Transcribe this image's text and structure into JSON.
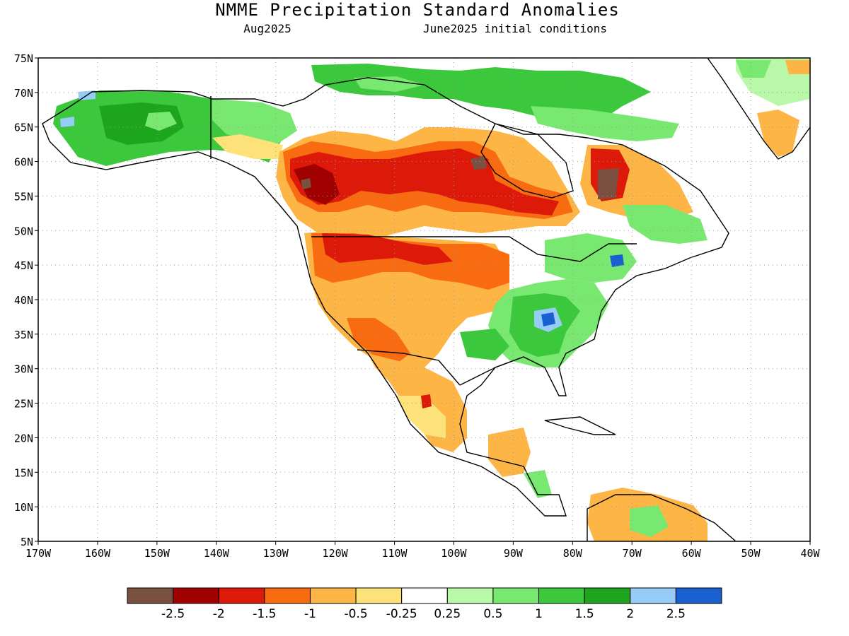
{
  "title": "NMME Precipitation Standard Anomalies",
  "subtitle_left": "Aug2025",
  "subtitle_right": "June2025 initial conditions",
  "lat_labels": [
    "75N",
    "70N",
    "65N",
    "60N",
    "55N",
    "50N",
    "45N",
    "40N",
    "35N",
    "30N",
    "25N",
    "20N",
    "15N",
    "10N",
    "5N"
  ],
  "lon_labels": [
    "170W",
    "160W",
    "150W",
    "140W",
    "130W",
    "120W",
    "110W",
    "100W",
    "90W",
    "80W",
    "70W",
    "60W",
    "50W",
    "40W"
  ],
  "legend": {
    "colors": [
      "#7a5040",
      "#a00000",
      "#dd1a0a",
      "#f86b10",
      "#fdb545",
      "#fde27a",
      "#ffffff",
      "#b8f8a8",
      "#78e870",
      "#3cc83c",
      "#1ea51e",
      "#96ccf5",
      "#1a60d0"
    ],
    "labels": [
      "-2.5",
      "-2",
      "-1.5",
      "-1",
      "-0.5",
      "-0.25",
      "0.25",
      "0.5",
      "1",
      "1.5",
      "2",
      "2.5"
    ]
  },
  "colors": {
    "ocean": "#ffffff",
    "coast": "#000000",
    "grid": "#999999"
  }
}
